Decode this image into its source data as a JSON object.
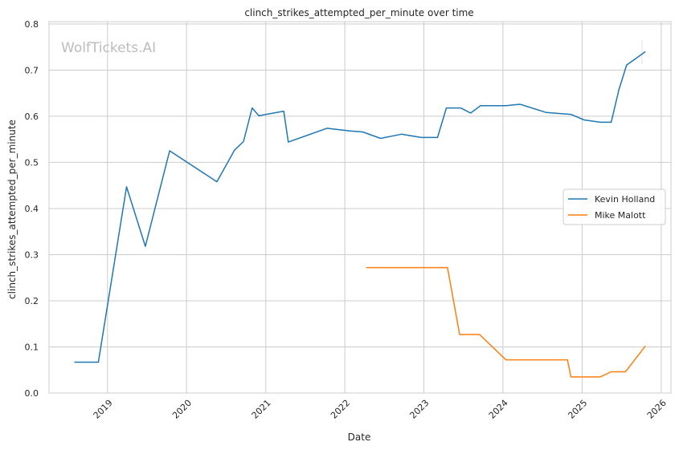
{
  "watermark": "WolfTickets.AI",
  "chart_data": {
    "type": "line",
    "title": "clinch_strikes_attempted_per_minute over time",
    "xlabel": "Date",
    "ylabel": "clinch_strikes_attempted_per_minute",
    "xlim": [
      "2018-04-06",
      "2026-02-15"
    ],
    "ylim": [
      0,
      0.805
    ],
    "x_ticks": [
      "2019-01-01",
      "2020-01-01",
      "2021-01-01",
      "2022-01-01",
      "2023-01-01",
      "2024-01-01",
      "2025-01-01",
      "2026-01-01"
    ],
    "x_tick_labels": [
      "2019",
      "2020",
      "2021",
      "2022",
      "2023",
      "2024",
      "2025",
      "2026"
    ],
    "y_ticks": [
      0,
      0.1,
      0.2,
      0.3,
      0.4,
      0.5,
      0.6,
      0.7,
      0.8
    ],
    "y_tick_labels": [
      "0.0",
      "0.1",
      "0.2",
      "0.3",
      "0.4",
      "0.5",
      "0.6",
      "0.7",
      "0.8"
    ],
    "grid": true,
    "legend": "center-right",
    "series": [
      {
        "name": "Kevin Holland",
        "color": "#1f77b4",
        "x": [
          "2018-08-01",
          "2018-11-20",
          "2019-03-30",
          "2019-06-25",
          "2019-10-15",
          "2020-05-20",
          "2020-08-10",
          "2020-09-20",
          "2020-10-30",
          "2020-11-30",
          "2021-03-25",
          "2021-04-15",
          "2021-10-10",
          "2022-01-25",
          "2022-03-25",
          "2022-06-15",
          "2022-09-20",
          "2022-12-20",
          "2023-03-05",
          "2023-04-15",
          "2023-06-20",
          "2023-08-05",
          "2023-09-20",
          "2024-01-15",
          "2024-03-20",
          "2024-07-20",
          "2024-11-10",
          "2025-01-10",
          "2025-03-25",
          "2025-05-15",
          "2025-06-20",
          "2025-07-25",
          "2025-10-20"
        ],
        "y": [
          0.067,
          0.067,
          0.447,
          0.318,
          0.525,
          0.458,
          0.527,
          0.545,
          0.618,
          0.601,
          0.611,
          0.544,
          0.574,
          0.568,
          0.566,
          0.552,
          0.561,
          0.554,
          0.554,
          0.618,
          0.618,
          0.607,
          0.623,
          0.623,
          0.626,
          0.608,
          0.604,
          0.592,
          0.587,
          0.587,
          0.658,
          0.711,
          0.74
        ]
      },
      {
        "name": "Mike Malott",
        "color": "#ff7f0e",
        "x": [
          "2022-04-10",
          "2023-04-20",
          "2023-06-15",
          "2023-09-15",
          "2024-01-15",
          "2024-10-25",
          "2024-11-10",
          "2025-03-25",
          "2025-05-15",
          "2025-07-20",
          "2025-10-20"
        ],
        "y": [
          0.272,
          0.272,
          0.127,
          0.127,
          0.072,
          0.072,
          0.035,
          0.035,
          0.046,
          0.046,
          0.102
        ]
      }
    ]
  }
}
